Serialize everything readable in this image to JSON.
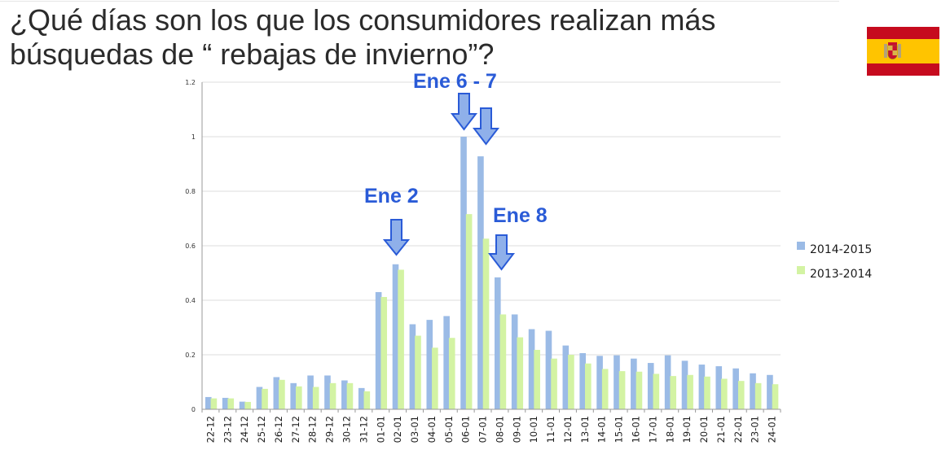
{
  "page": {
    "title": "¿Qué días son los que los consumidores realizan más\nbúsquedas de “ rebajas de invierno”?",
    "flag_icon": "spain-flag-icon"
  },
  "colors": {
    "series_2014_2015": "#9bbbe6",
    "series_2013_2014": "#d3f3a3",
    "callout": "#2a5bd7",
    "arrow_fill": "#8fb0ea",
    "arrow_stroke": "#2a5bd7",
    "grid": "#dcdcdc",
    "flag_red": "#c60b1e",
    "flag_yellow": "#ffc400"
  },
  "chart_data": {
    "type": "bar",
    "categories": [
      "22-12",
      "23-12",
      "24-12",
      "25-12",
      "26-12",
      "27-12",
      "28-12",
      "29-12",
      "30-12",
      "31-12",
      "01-01",
      "02-01",
      "03-01",
      "04-01",
      "05-01",
      "06-01",
      "07-01",
      "08-01",
      "09-01",
      "10-01",
      "11-01",
      "12-01",
      "13-01",
      "14-01",
      "15-01",
      "16-01",
      "17-01",
      "18-01",
      "19-01",
      "20-01",
      "21-01",
      "22-01",
      "23-01",
      "24-01"
    ],
    "series": [
      {
        "name": "2014-2015",
        "color": "#9bbbe6",
        "values": [
          0.045,
          0.042,
          0.028,
          0.082,
          0.118,
          0.096,
          0.124,
          0.124,
          0.106,
          0.078,
          0.43,
          0.532,
          0.312,
          0.328,
          0.342,
          1.0,
          0.928,
          0.484,
          0.348,
          0.294,
          0.288,
          0.234,
          0.206,
          0.196,
          0.198,
          0.186,
          0.17,
          0.198,
          0.178,
          0.164,
          0.158,
          0.15,
          0.132,
          0.126
        ]
      },
      {
        "name": "2013-2014",
        "color": "#d3f3a3",
        "values": [
          0.04,
          0.04,
          0.027,
          0.075,
          0.108,
          0.084,
          0.082,
          0.096,
          0.096,
          0.066,
          0.412,
          0.512,
          0.27,
          0.226,
          0.262,
          0.716,
          0.626,
          0.348,
          0.264,
          0.218,
          0.186,
          0.2,
          0.168,
          0.148,
          0.14,
          0.138,
          0.13,
          0.122,
          0.126,
          0.12,
          0.112,
          0.104,
          0.096,
          0.092
        ]
      }
    ],
    "yticks": [
      "0",
      "0.2",
      "0.4",
      "0.6",
      "0.8",
      "1",
      "1.2"
    ],
    "ylim": [
      0,
      1.2
    ],
    "grid": true,
    "legend_position": "right",
    "xlabel": "",
    "ylabel": "",
    "annotations": [
      {
        "label": "Ene 2",
        "category": "02-01"
      },
      {
        "label": "Ene 6 - 7",
        "categories": [
          "06-01",
          "07-01"
        ]
      },
      {
        "label": "Ene 8",
        "category": "08-01"
      }
    ]
  }
}
